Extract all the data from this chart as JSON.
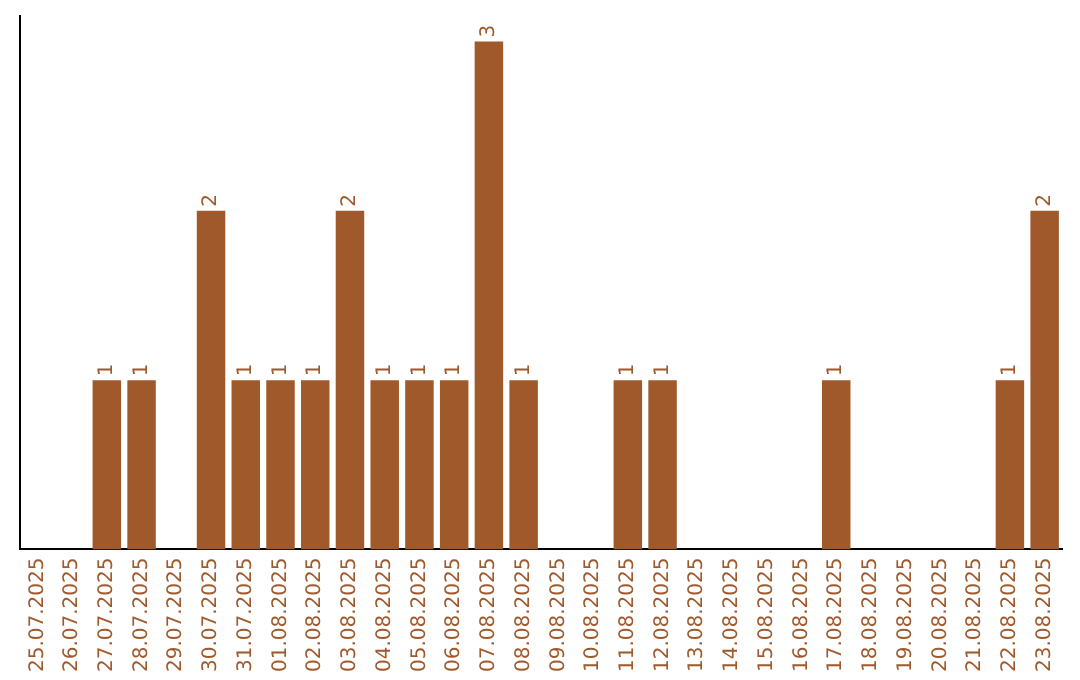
{
  "chart_data": {
    "type": "bar",
    "categories": [
      "25.07.2025",
      "26.07.2025",
      "27.07.2025",
      "28.07.2025",
      "29.07.2025",
      "30.07.2025",
      "31.07.2025",
      "01.08.2025",
      "02.08.2025",
      "03.08.2025",
      "04.08.2025",
      "05.08.2025",
      "06.08.2025",
      "07.08.2025",
      "08.08.2025",
      "09.08.2025",
      "10.08.2025",
      "11.08.2025",
      "12.08.2025",
      "13.08.2025",
      "14.08.2025",
      "15.08.2025",
      "16.08.2025",
      "17.08.2025",
      "18.08.2025",
      "19.08.2025",
      "20.08.2025",
      "21.08.2025",
      "22.08.2025",
      "23.08.2025"
    ],
    "values": [
      0,
      0,
      1,
      1,
      0,
      2,
      1,
      1,
      1,
      2,
      1,
      1,
      1,
      3,
      1,
      0,
      0,
      1,
      1,
      0,
      0,
      0,
      0,
      1,
      0,
      0,
      0,
      0,
      1,
      2
    ],
    "value_labels": [
      null,
      null,
      "1",
      "1",
      null,
      "2",
      "1",
      "1",
      "1",
      "2",
      "1",
      "1",
      "1",
      "3",
      "1",
      null,
      null,
      "1",
      "1",
      null,
      null,
      null,
      null,
      "1",
      null,
      null,
      null,
      null,
      "1",
      "2"
    ],
    "color": "#a0592b",
    "ylim": [
      0,
      3.15
    ],
    "tick_labels": "x",
    "grid": false,
    "legend": false
  }
}
